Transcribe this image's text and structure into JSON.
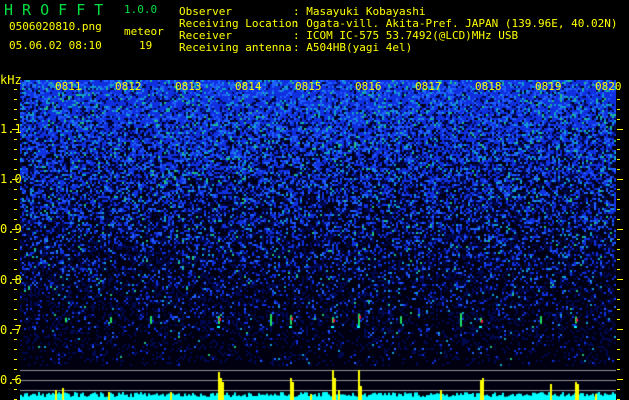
{
  "app": {
    "name": "H R O F F T",
    "version": "1.0.0"
  },
  "file": {
    "name": "0506020810.png",
    "datetime": "05.06.02 08:10"
  },
  "meteor": {
    "label": "meteor",
    "count": "19"
  },
  "info": [
    {
      "label": "Observer",
      "value": ": Masayuki Kobayashi"
    },
    {
      "label": "Receiving Location",
      "value": ": Ogata-vill. Akita-Pref. JAPAN (139.96E, 40.02N)"
    },
    {
      "label": "Receiver",
      "value": ": ICOM IC-575 53.7492(@LCD)MHz USB"
    },
    {
      "label": "Receiving antenna",
      "value": ": A504HB(yagi 4el)"
    }
  ],
  "axis": {
    "unit": "kHz",
    "freq_ticks": [
      "1.1",
      "1.0",
      "0.9",
      "0.8",
      "0.7",
      "0.6"
    ],
    "time_ticks": [
      "0811",
      "0812",
      "0813",
      "0814",
      "0815",
      "0816",
      "0817",
      "0818",
      "0819",
      "0820"
    ]
  },
  "colors": {
    "text": "#ffff00",
    "title": "#00e040",
    "histogram": "#00ffff",
    "meteor_spike": "#ffff00",
    "background": "#000000"
  },
  "meteors": {
    "minutes": [
      8.05,
      8.95,
      9.8,
      10.25,
      12.6,
      13.3,
      14.5,
      14.8,
      18.6,
      19.2,
      20.4,
      21.2,
      24.6,
      28.2,
      30.2,
      31.3,
      33.0,
      36.5,
      37.0
    ],
    "spike_minutes_heights": [
      [
        13.3,
        0.75
      ],
      [
        15.9,
        0.7
      ],
      [
        17.8,
        0.75
      ],
      [
        18.6,
        0.85
      ],
      [
        20.4,
        0.6
      ],
      [
        26.5,
        0.95
      ],
      [
        30.2,
        0.55
      ],
      [
        36.6,
        0.45
      ]
    ]
  }
}
